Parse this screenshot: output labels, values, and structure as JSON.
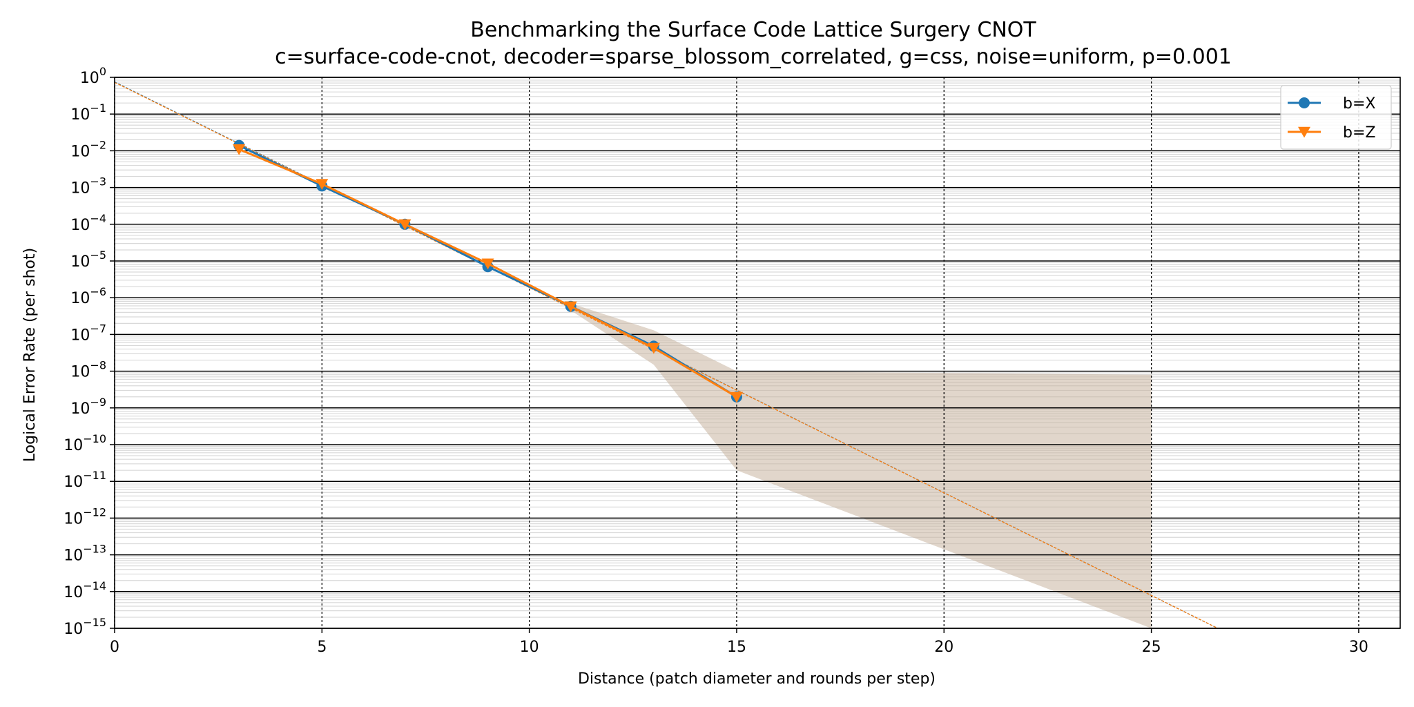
{
  "chart_data": {
    "type": "line",
    "title": "Benchmarking the Surface Code Lattice Surgery CNOT",
    "subtitle": "c=surface-code-cnot, decoder=sparse_blossom_correlated, g=css, noise=uniform, p=0.001",
    "xlabel": "Distance (patch diameter and rounds per step)",
    "ylabel": "Logical Error Rate (per shot)",
    "x_scale": "linear",
    "y_scale": "log",
    "xlim": [
      0,
      31
    ],
    "ylim": [
      1e-15,
      1
    ],
    "x_ticks": [
      {
        "value": 0,
        "label": "0"
      },
      {
        "value": 5,
        "label": "5"
      },
      {
        "value": 10,
        "label": "10"
      },
      {
        "value": 15,
        "label": "15"
      },
      {
        "value": 20,
        "label": "20"
      },
      {
        "value": 25,
        "label": "25"
      },
      {
        "value": 30,
        "label": "30"
      }
    ],
    "y_ticks": [
      {
        "exp": 0,
        "base": "10",
        "exponent": "0"
      },
      {
        "exp": -1,
        "base": "10",
        "exponent": "−1"
      },
      {
        "exp": -2,
        "base": "10",
        "exponent": "−2"
      },
      {
        "exp": -3,
        "base": "10",
        "exponent": "−3"
      },
      {
        "exp": -4,
        "base": "10",
        "exponent": "−4"
      },
      {
        "exp": -5,
        "base": "10",
        "exponent": "−5"
      },
      {
        "exp": -6,
        "base": "10",
        "exponent": "−6"
      },
      {
        "exp": -7,
        "base": "10",
        "exponent": "−7"
      },
      {
        "exp": -8,
        "base": "10",
        "exponent": "−8"
      },
      {
        "exp": -9,
        "base": "10",
        "exponent": "−9"
      },
      {
        "exp": -10,
        "base": "10",
        "exponent": "−10"
      },
      {
        "exp": -11,
        "base": "10",
        "exponent": "−11"
      },
      {
        "exp": -12,
        "base": "10",
        "exponent": "−12"
      },
      {
        "exp": -13,
        "base": "10",
        "exponent": "−13"
      },
      {
        "exp": -14,
        "base": "10",
        "exponent": "−14"
      },
      {
        "exp": -15,
        "base": "10",
        "exponent": "−15"
      }
    ],
    "grid": {
      "major": true,
      "minor": true
    },
    "legend_position": "top-right",
    "series": [
      {
        "name": "b=X",
        "color": "#1f77b4",
        "marker": "circle",
        "x": [
          3,
          5,
          7,
          9,
          11,
          13,
          15
        ],
        "y": [
          0.014,
          0.0011,
          0.0001,
          7e-06,
          5.8e-07,
          4.8e-08,
          2e-09
        ]
      },
      {
        "name": "b=Z",
        "color": "#ff7f0e",
        "marker": "triangle-down",
        "x": [
          3,
          5,
          7,
          9,
          11,
          13,
          15
        ],
        "y": [
          0.011,
          0.00125,
          0.0001,
          8.5e-06,
          5.8e-07,
          4.3e-08,
          2e-09
        ]
      }
    ],
    "fit_lines": [
      {
        "series": "b=X",
        "color": "#1f77b4",
        "x": [
          0,
          26.6
        ],
        "y": [
          0.75,
          1e-15
        ]
      },
      {
        "series": "b=Z",
        "color": "#ff7f0e",
        "x": [
          0,
          26.6
        ],
        "y": [
          0.73,
          1e-15
        ]
      }
    ],
    "uncertainty_bands": [
      {
        "color": "#c8b4a0",
        "x": [
          11,
          13,
          15,
          25
        ],
        "upper": [
          7e-07,
          1.3e-07,
          1e-08,
          8e-09
        ],
        "lower": [
          4.5e-07,
          1.5e-08,
          2e-11,
          1e-15
        ]
      }
    ]
  }
}
